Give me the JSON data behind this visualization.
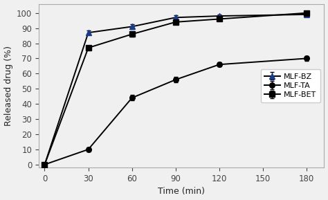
{
  "x": [
    0,
    30,
    60,
    90,
    120,
    180
  ],
  "series": [
    {
      "label": "MLF-BZ",
      "y": [
        0,
        87,
        91,
        97,
        98,
        99
      ],
      "yerr": [
        0.4,
        1.5,
        1.5,
        1.5,
        1.0,
        0.5
      ],
      "line_color": "#000000",
      "marker_color": "#1a3a8a",
      "marker": "^",
      "markersize": 5.5,
      "linewidth": 1.4
    },
    {
      "label": "MLF-TA",
      "y": [
        0,
        10,
        44,
        56,
        66,
        70
      ],
      "yerr": [
        0.4,
        1.5,
        1.8,
        2.0,
        1.5,
        1.5
      ],
      "line_color": "#000000",
      "marker_color": "#000000",
      "marker": "o",
      "markersize": 5.5,
      "linewidth": 1.4
    },
    {
      "label": "MLF-BET",
      "y": [
        0,
        77,
        86,
        94,
        96,
        100
      ],
      "yerr": [
        0.4,
        1.5,
        1.5,
        1.5,
        1.2,
        0.5
      ],
      "line_color": "#000000",
      "marker_color": "#000000",
      "marker": "s",
      "markersize": 5.5,
      "linewidth": 1.4
    }
  ],
  "xlabel": "Time (min)",
  "ylabel": "Released drug (%)",
  "xlim": [
    -4,
    192
  ],
  "ylim": [
    -2,
    106
  ],
  "xticks": [
    0,
    30,
    60,
    90,
    120,
    150,
    180
  ],
  "yticks": [
    0,
    10,
    20,
    30,
    40,
    50,
    60,
    70,
    80,
    90,
    100
  ],
  "legend_loc": "center right",
  "background_color": "#f0f0f0",
  "plot_bg_color": "#f0f0f0",
  "label_fontsize": 9,
  "tick_fontsize": 8.5,
  "legend_fontsize": 8
}
